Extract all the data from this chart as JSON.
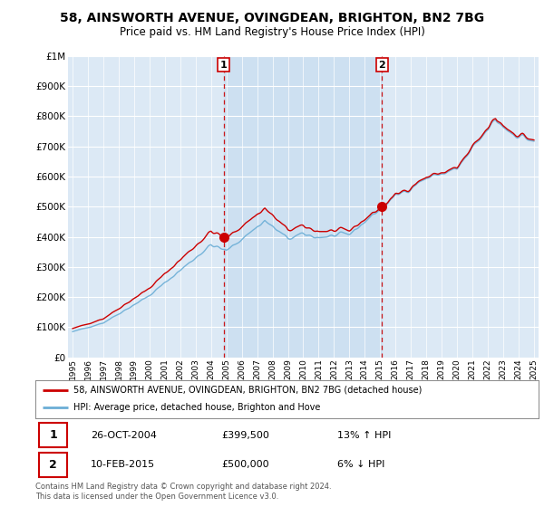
{
  "title": "58, AINSWORTH AVENUE, OVINGDEAN, BRIGHTON, BN2 7BG",
  "subtitle": "Price paid vs. HM Land Registry's House Price Index (HPI)",
  "plot_bg_color": "#dce9f5",
  "sale1_date_x": 2004.82,
  "sale1_price": 399500,
  "sale2_date_x": 2015.12,
  "sale2_price": 500000,
  "sale1_date_str": "26-OCT-2004",
  "sale2_date_str": "10-FEB-2015",
  "sale1_hpi_pct": "13% ↑ HPI",
  "sale2_hpi_pct": "6% ↓ HPI",
  "legend_line1": "58, AINSWORTH AVENUE, OVINGDEAN, BRIGHTON, BN2 7BG (detached house)",
  "legend_line2": "HPI: Average price, detached house, Brighton and Hove",
  "footnote": "Contains HM Land Registry data © Crown copyright and database right 2024.\nThis data is licensed under the Open Government Licence v3.0.",
  "hpi_color": "#6baed6",
  "price_color": "#cc0000",
  "dashed_color": "#cc0000",
  "fill_color": "#c8ddf0",
  "ylim_max": 1000000,
  "ylim_min": 0,
  "xlim_min": 1994.7,
  "xlim_max": 2025.3
}
